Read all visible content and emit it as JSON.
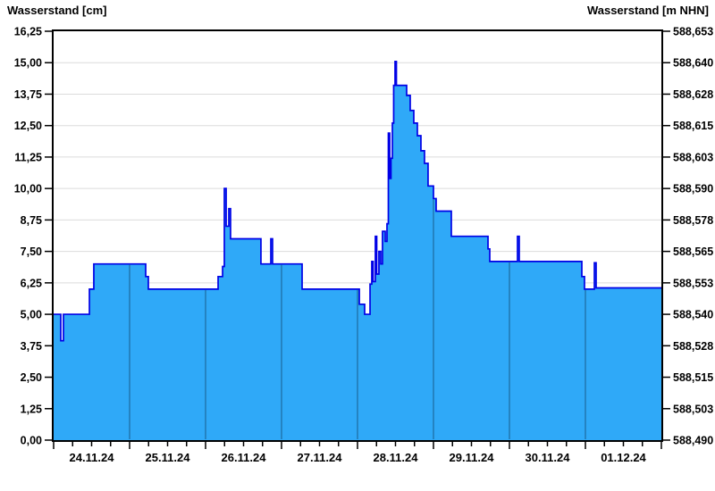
{
  "chart": {
    "left_axis": {
      "title": "Wasserstand [cm]",
      "min": 0,
      "max": 16.25,
      "tick_step": 1.25,
      "tick_labels": [
        "0,00",
        "1,25",
        "2,50",
        "3,75",
        "5,00",
        "6,25",
        "7,50",
        "8,75",
        "10,00",
        "11,25",
        "12,50",
        "13,75",
        "15,00",
        "16,25"
      ]
    },
    "right_axis": {
      "title": "Wasserstand [m NHN]",
      "tick_labels": [
        "588,490",
        "588,503",
        "588,515",
        "588,528",
        "588,540",
        "588,553",
        "588,565",
        "588,578",
        "588,590",
        "588,603",
        "588,615",
        "588,628",
        "588,640",
        "588,653"
      ]
    },
    "x_axis": {
      "day_labels": [
        "24.11.24",
        "25.11.24",
        "26.11.24",
        "27.11.24",
        "28.11.24",
        "29.11.24",
        "30.11.24",
        "01.12.24"
      ],
      "minor_ticks_per_day": 4
    },
    "colors": {
      "fill": "#2FA9F8",
      "line": "#0000E6",
      "h_grid": "#DBDBDB",
      "day_grid_in_fill": "#1E6FA5",
      "axis": "#000000",
      "text": "#000000"
    }
  },
  "chart_data": {
    "type": "area",
    "interpolation": "step-after",
    "title": "",
    "xlabel": "",
    "ylabel_left": "Wasserstand [cm]",
    "ylabel_right": "Wasserstand [m NHN]",
    "x_unit": "days since 24.11.2024 00:00",
    "x_range_days": [
      0,
      8
    ],
    "ylim": [
      0,
      16.25
    ],
    "right_axis_base_m_nhn": 588.49,
    "cm_to_m_nhn": "m NHN = 588.490 + cm/100",
    "grid": true,
    "points": [
      [
        0.0,
        5.0
      ],
      [
        0.094,
        3.95
      ],
      [
        0.129,
        5.0
      ],
      [
        0.471,
        6.0
      ],
      [
        0.529,
        7.0
      ],
      [
        1.212,
        6.5
      ],
      [
        1.247,
        6.0
      ],
      [
        2.165,
        6.5
      ],
      [
        2.224,
        6.9
      ],
      [
        2.247,
        10.0
      ],
      [
        2.271,
        8.5
      ],
      [
        2.306,
        9.2
      ],
      [
        2.329,
        8.0
      ],
      [
        2.729,
        7.0
      ],
      [
        2.859,
        8.0
      ],
      [
        2.882,
        7.0
      ],
      [
        3.271,
        6.0
      ],
      [
        4.024,
        5.4
      ],
      [
        4.094,
        5.0
      ],
      [
        4.165,
        6.2
      ],
      [
        4.188,
        7.1
      ],
      [
        4.206,
        6.3
      ],
      [
        4.235,
        8.1
      ],
      [
        4.253,
        6.6
      ],
      [
        4.282,
        7.5
      ],
      [
        4.306,
        7.0
      ],
      [
        4.329,
        8.3
      ],
      [
        4.365,
        7.9
      ],
      [
        4.388,
        8.6
      ],
      [
        4.406,
        12.2
      ],
      [
        4.424,
        10.4
      ],
      [
        4.441,
        11.2
      ],
      [
        4.459,
        12.6
      ],
      [
        4.476,
        14.1
      ],
      [
        4.494,
        15.05
      ],
      [
        4.512,
        14.1
      ],
      [
        4.647,
        13.7
      ],
      [
        4.694,
        13.1
      ],
      [
        4.741,
        12.6
      ],
      [
        4.788,
        12.1
      ],
      [
        4.835,
        11.5
      ],
      [
        4.882,
        11.0
      ],
      [
        4.929,
        10.1
      ],
      [
        5.0,
        9.6
      ],
      [
        5.035,
        9.1
      ],
      [
        5.235,
        8.1
      ],
      [
        5.718,
        7.6
      ],
      [
        5.741,
        7.1
      ],
      [
        6.106,
        8.1
      ],
      [
        6.129,
        7.1
      ],
      [
        6.953,
        6.5
      ],
      [
        6.988,
        6.0
      ],
      [
        7.118,
        7.05
      ],
      [
        7.141,
        6.05
      ],
      [
        8.0,
        6.05
      ]
    ]
  }
}
